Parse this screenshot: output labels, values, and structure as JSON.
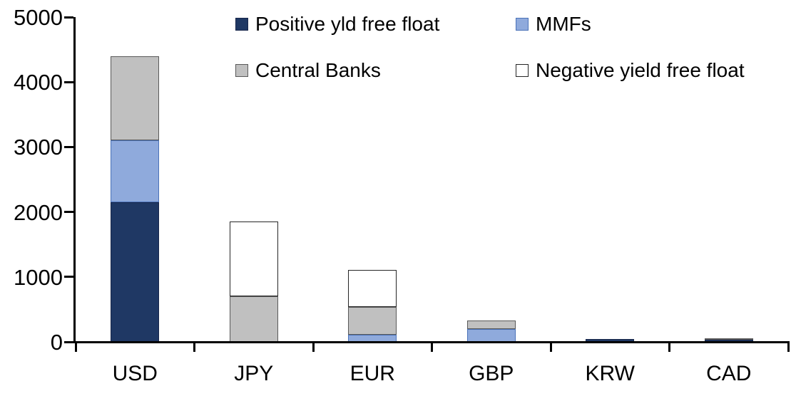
{
  "chart_data": {
    "type": "bar",
    "stacked": true,
    "title": "",
    "xlabel": "",
    "ylabel": "",
    "categories": [
      "USD",
      "JPY",
      "EUR",
      "GBP",
      "KRW",
      "CAD"
    ],
    "series": [
      {
        "name": "Positive yld free float",
        "color": "#1F3864",
        "border": "#17264A",
        "values": [
          2150,
          0,
          0,
          0,
          40,
          30
        ]
      },
      {
        "name": "MMFs",
        "color": "#8FAADC",
        "border": "#4A72B8",
        "values": [
          950,
          0,
          110,
          200,
          0,
          0
        ]
      },
      {
        "name": "Central Banks",
        "color": "#C0C0C0",
        "border": "#595959",
        "values": [
          1300,
          700,
          430,
          130,
          0,
          30
        ]
      },
      {
        "name": "Negative yield free float",
        "color": "#FFFFFF",
        "border": "#262626",
        "values": [
          0,
          1150,
          570,
          0,
          0,
          0
        ]
      }
    ],
    "totals": {
      "USD": 4400,
      "JPY": 1850,
      "EUR": 1110,
      "GBP": 330,
      "KRW": 40,
      "CAD": 60
    },
    "ylim": [
      0,
      5000
    ],
    "ytick_interval": 1000,
    "yticks": [
      "0",
      "1000",
      "2000",
      "3000",
      "4000",
      "5000"
    ],
    "grid": false,
    "legend_position": "top",
    "legend_rows": [
      [
        "Positive yld free float",
        "MMFs"
      ],
      [
        "Central Banks",
        "Negative yield free float"
      ]
    ]
  },
  "colors": {
    "axis": "#000000",
    "text": "#000000",
    "background": "#FFFFFF"
  }
}
